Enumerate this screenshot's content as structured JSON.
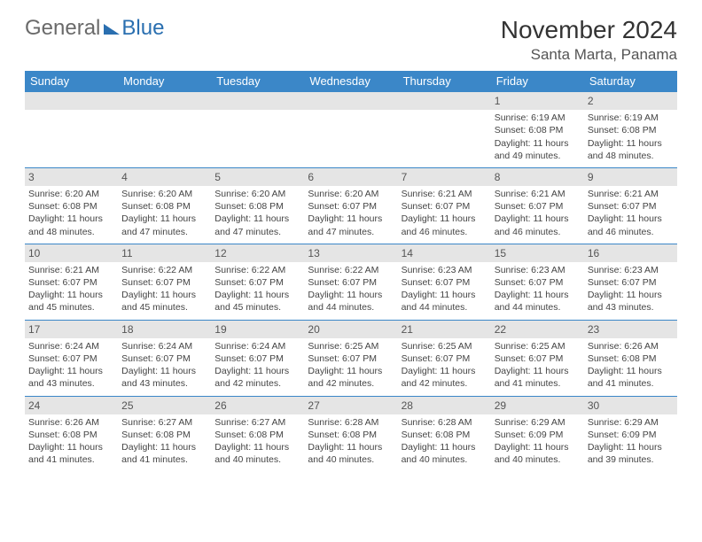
{
  "logo": {
    "general": "General",
    "blue": "Blue"
  },
  "title": "November 2024",
  "location": "Santa Marta, Panama",
  "weekdays": [
    "Sunday",
    "Monday",
    "Tuesday",
    "Wednesday",
    "Thursday",
    "Friday",
    "Saturday"
  ],
  "colors": {
    "header_bg": "#3b87c8",
    "header_text": "#ffffff",
    "daynum_bg": "#e5e5e5",
    "border": "#3b87c8",
    "logo_gray": "#6a6a6a",
    "logo_blue": "#2a6fb0"
  },
  "leading_blanks": 5,
  "days": [
    {
      "n": 1,
      "sunrise": "6:19 AM",
      "sunset": "6:08 PM",
      "daylight": "11 hours and 49 minutes."
    },
    {
      "n": 2,
      "sunrise": "6:19 AM",
      "sunset": "6:08 PM",
      "daylight": "11 hours and 48 minutes."
    },
    {
      "n": 3,
      "sunrise": "6:20 AM",
      "sunset": "6:08 PM",
      "daylight": "11 hours and 48 minutes."
    },
    {
      "n": 4,
      "sunrise": "6:20 AM",
      "sunset": "6:08 PM",
      "daylight": "11 hours and 47 minutes."
    },
    {
      "n": 5,
      "sunrise": "6:20 AM",
      "sunset": "6:08 PM",
      "daylight": "11 hours and 47 minutes."
    },
    {
      "n": 6,
      "sunrise": "6:20 AM",
      "sunset": "6:07 PM",
      "daylight": "11 hours and 47 minutes."
    },
    {
      "n": 7,
      "sunrise": "6:21 AM",
      "sunset": "6:07 PM",
      "daylight": "11 hours and 46 minutes."
    },
    {
      "n": 8,
      "sunrise": "6:21 AM",
      "sunset": "6:07 PM",
      "daylight": "11 hours and 46 minutes."
    },
    {
      "n": 9,
      "sunrise": "6:21 AM",
      "sunset": "6:07 PM",
      "daylight": "11 hours and 46 minutes."
    },
    {
      "n": 10,
      "sunrise": "6:21 AM",
      "sunset": "6:07 PM",
      "daylight": "11 hours and 45 minutes."
    },
    {
      "n": 11,
      "sunrise": "6:22 AM",
      "sunset": "6:07 PM",
      "daylight": "11 hours and 45 minutes."
    },
    {
      "n": 12,
      "sunrise": "6:22 AM",
      "sunset": "6:07 PM",
      "daylight": "11 hours and 45 minutes."
    },
    {
      "n": 13,
      "sunrise": "6:22 AM",
      "sunset": "6:07 PM",
      "daylight": "11 hours and 44 minutes."
    },
    {
      "n": 14,
      "sunrise": "6:23 AM",
      "sunset": "6:07 PM",
      "daylight": "11 hours and 44 minutes."
    },
    {
      "n": 15,
      "sunrise": "6:23 AM",
      "sunset": "6:07 PM",
      "daylight": "11 hours and 44 minutes."
    },
    {
      "n": 16,
      "sunrise": "6:23 AM",
      "sunset": "6:07 PM",
      "daylight": "11 hours and 43 minutes."
    },
    {
      "n": 17,
      "sunrise": "6:24 AM",
      "sunset": "6:07 PM",
      "daylight": "11 hours and 43 minutes."
    },
    {
      "n": 18,
      "sunrise": "6:24 AM",
      "sunset": "6:07 PM",
      "daylight": "11 hours and 43 minutes."
    },
    {
      "n": 19,
      "sunrise": "6:24 AM",
      "sunset": "6:07 PM",
      "daylight": "11 hours and 42 minutes."
    },
    {
      "n": 20,
      "sunrise": "6:25 AM",
      "sunset": "6:07 PM",
      "daylight": "11 hours and 42 minutes."
    },
    {
      "n": 21,
      "sunrise": "6:25 AM",
      "sunset": "6:07 PM",
      "daylight": "11 hours and 42 minutes."
    },
    {
      "n": 22,
      "sunrise": "6:25 AM",
      "sunset": "6:07 PM",
      "daylight": "11 hours and 41 minutes."
    },
    {
      "n": 23,
      "sunrise": "6:26 AM",
      "sunset": "6:08 PM",
      "daylight": "11 hours and 41 minutes."
    },
    {
      "n": 24,
      "sunrise": "6:26 AM",
      "sunset": "6:08 PM",
      "daylight": "11 hours and 41 minutes."
    },
    {
      "n": 25,
      "sunrise": "6:27 AM",
      "sunset": "6:08 PM",
      "daylight": "11 hours and 41 minutes."
    },
    {
      "n": 26,
      "sunrise": "6:27 AM",
      "sunset": "6:08 PM",
      "daylight": "11 hours and 40 minutes."
    },
    {
      "n": 27,
      "sunrise": "6:28 AM",
      "sunset": "6:08 PM",
      "daylight": "11 hours and 40 minutes."
    },
    {
      "n": 28,
      "sunrise": "6:28 AM",
      "sunset": "6:08 PM",
      "daylight": "11 hours and 40 minutes."
    },
    {
      "n": 29,
      "sunrise": "6:29 AM",
      "sunset": "6:09 PM",
      "daylight": "11 hours and 40 minutes."
    },
    {
      "n": 30,
      "sunrise": "6:29 AM",
      "sunset": "6:09 PM",
      "daylight": "11 hours and 39 minutes."
    }
  ],
  "labels": {
    "sunrise": "Sunrise:",
    "sunset": "Sunset:",
    "daylight": "Daylight:"
  }
}
